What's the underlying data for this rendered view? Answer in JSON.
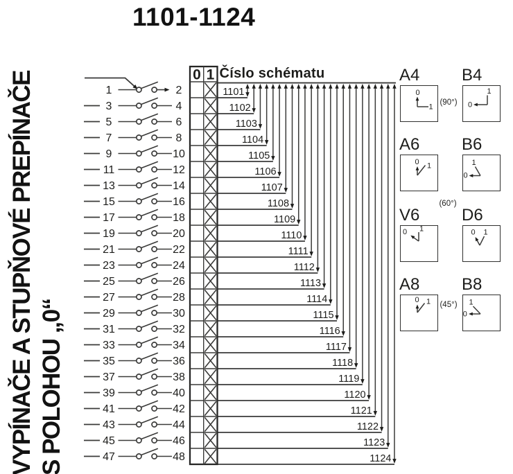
{
  "page": {
    "sidebar_title_line1": "VYPÍNAČE A STUPŇOVÉ PREPÍNAČE",
    "sidebar_title_line2": "S POLOHOU „0“",
    "main_title": "1101-1124"
  },
  "table": {
    "col0": "0",
    "col1": "1",
    "mark": "X"
  },
  "cascade": {
    "title": "Číslo schématu"
  },
  "rows": [
    {
      "odd": "1",
      "even": "2",
      "schema": "1101"
    },
    {
      "odd": "3",
      "even": "4",
      "schema": "1102"
    },
    {
      "odd": "5",
      "even": "6",
      "schema": "1103"
    },
    {
      "odd": "7",
      "even": "8",
      "schema": "1104"
    },
    {
      "odd": "9",
      "even": "10",
      "schema": "1105"
    },
    {
      "odd": "11",
      "even": "12",
      "schema": "1106"
    },
    {
      "odd": "13",
      "even": "14",
      "schema": "1107"
    },
    {
      "odd": "15",
      "even": "16",
      "schema": "1108"
    },
    {
      "odd": "17",
      "even": "18",
      "schema": "1109"
    },
    {
      "odd": "19",
      "even": "20",
      "schema": "1110"
    },
    {
      "odd": "21",
      "even": "22",
      "schema": "1111"
    },
    {
      "odd": "23",
      "even": "24",
      "schema": "1112"
    },
    {
      "odd": "25",
      "even": "26",
      "schema": "1113"
    },
    {
      "odd": "27",
      "even": "28",
      "schema": "1114"
    },
    {
      "odd": "29",
      "even": "30",
      "schema": "1115"
    },
    {
      "odd": "31",
      "even": "32",
      "schema": "1116"
    },
    {
      "odd": "33",
      "even": "34",
      "schema": "1117"
    },
    {
      "odd": "35",
      "even": "36",
      "schema": "1118"
    },
    {
      "odd": "37",
      "even": "38",
      "schema": "1119"
    },
    {
      "odd": "39",
      "even": "40",
      "schema": "1120"
    },
    {
      "odd": "41",
      "even": "42",
      "schema": "1121"
    },
    {
      "odd": "43",
      "even": "44",
      "schema": "1122"
    },
    {
      "odd": "45",
      "even": "46",
      "schema": "1123"
    },
    {
      "odd": "47",
      "even": "48",
      "schema": "1124"
    }
  ],
  "positions": {
    "items": [
      {
        "id": "A4",
        "label": "A4",
        "zero": "0",
        "one": "1"
      },
      {
        "id": "B4",
        "label": "B4",
        "zero": "0",
        "one": "1"
      },
      {
        "id": "A6",
        "label": "A6",
        "zero": "0",
        "one": "1"
      },
      {
        "id": "B6",
        "label": "B6",
        "zero": "0",
        "one": "1"
      },
      {
        "id": "V6",
        "label": "V6",
        "zero": "0",
        "one": "1"
      },
      {
        "id": "D6",
        "label": "D6",
        "zero": "0",
        "one": "1"
      },
      {
        "id": "A8",
        "label": "A8",
        "zero": "0",
        "one": "1"
      },
      {
        "id": "B8",
        "label": "B8",
        "zero": "0",
        "one": "1"
      }
    ],
    "angles": [
      {
        "text": "(90°)"
      },
      {
        "text": "(60°)"
      },
      {
        "text": "(45°)"
      }
    ]
  },
  "colors": {
    "ink": "#1d1d1b",
    "line": "#3a3a39",
    "background": "#ffffff"
  }
}
